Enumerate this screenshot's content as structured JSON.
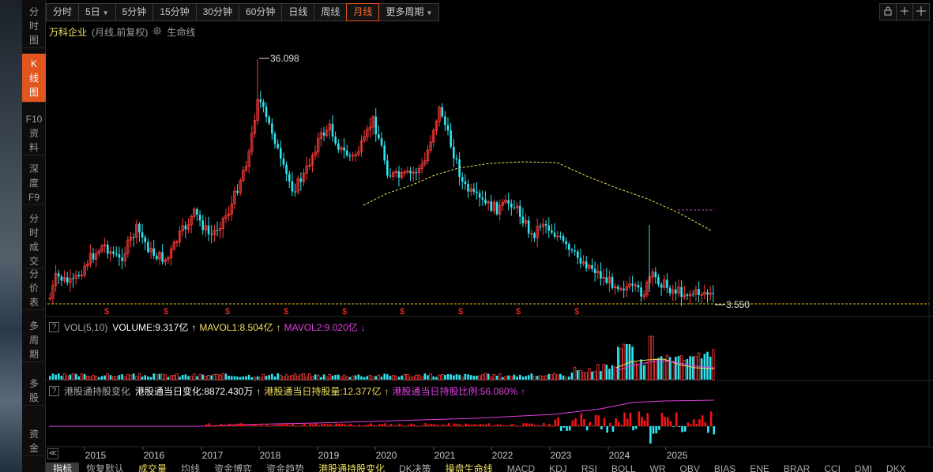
{
  "side_nav": [
    {
      "label": [
        "分",
        "时",
        "图"
      ],
      "active": false
    },
    {
      "label": [
        "K",
        "线",
        "图"
      ],
      "active": true
    },
    {
      "label": [
        "F10",
        "资",
        "料"
      ],
      "active": false
    },
    {
      "label": [
        "深",
        "度",
        "F9"
      ],
      "active": false
    },
    {
      "label": [
        "分",
        "时",
        "成",
        "交"
      ],
      "active": false
    },
    {
      "label": [
        "分",
        "价",
        "表"
      ],
      "active": false
    },
    {
      "label": [
        "多",
        "周",
        "期"
      ],
      "active": false
    },
    {
      "label": [
        "多",
        "股"
      ],
      "active": false
    },
    {
      "label": [
        "资",
        "金"
      ],
      "active": false
    }
  ],
  "toolbar": {
    "periods": [
      {
        "label": "分时",
        "active": false
      },
      {
        "label": "5日",
        "active": false,
        "caret": true
      },
      {
        "label": "5分钟",
        "active": false
      },
      {
        "label": "15分钟",
        "active": false
      },
      {
        "label": "30分钟",
        "active": false
      },
      {
        "label": "60分钟",
        "active": false
      },
      {
        "label": "日线",
        "active": false
      },
      {
        "label": "周线",
        "active": false
      },
      {
        "label": "月线",
        "active": true
      },
      {
        "label": "更多周期",
        "active": false,
        "caret": true
      }
    ],
    "right_tools": [
      "lock-icon",
      "plus-icon",
      "crosshair-icon"
    ]
  },
  "header": {
    "stock_name": "万科企业",
    "mode": "(月线,前复权)",
    "indicator": "生命线"
  },
  "price_chart": {
    "high_label": "36.098",
    "low_label": "3.550",
    "dividend_marker": "$"
  },
  "volume_legend": {
    "box": "?",
    "name": "VOL(5,10)",
    "volume": "VOLUME:9.317亿",
    "mavol1": "MAVOL1:8.504亿",
    "mavol2": "MAVOL2:9.020亿",
    "arrow_up": "↑",
    "arrow_down": "↓"
  },
  "hk_legend": {
    "box": "?",
    "name": "港股通持股变化",
    "daily_change": "港股通当日变化:8872.430万",
    "holding": "港股通当日持股量:12.377亿",
    "ratio": "港股通当日持股比例:56.080%",
    "arrow_up": "↑"
  },
  "x_axis": {
    "collapse": "≪",
    "years": [
      "2015",
      "2016",
      "2017",
      "2018",
      "2019",
      "2020",
      "2021",
      "2022",
      "2023",
      "2024",
      "2025"
    ]
  },
  "bottom_tabs": [
    {
      "label": "指标",
      "active": true
    },
    {
      "label": "恢复默认",
      "active": false
    },
    {
      "label": "成交量",
      "active": false,
      "yellow": true
    },
    {
      "label": "均线",
      "active": false
    },
    {
      "label": "资金博弈",
      "active": false
    },
    {
      "label": "资金趋势",
      "active": false
    },
    {
      "label": "港股通持股变化",
      "active": false,
      "yellow": true
    },
    {
      "label": "DK决策",
      "active": false
    },
    {
      "label": "操盘生命线",
      "active": false,
      "yellow": true
    },
    {
      "label": "MACD",
      "active": false
    },
    {
      "label": "KDJ",
      "active": false
    },
    {
      "label": "RSI",
      "active": false
    },
    {
      "label": "BOLL",
      "active": false
    },
    {
      "label": "WR",
      "active": false
    },
    {
      "label": "OBV",
      "active": false
    },
    {
      "label": "BIAS",
      "active": false
    },
    {
      "label": "ENE",
      "active": false
    },
    {
      "label": "BRAR",
      "active": false
    },
    {
      "label": "CCI",
      "active": false
    },
    {
      "label": "DMI",
      "active": false
    },
    {
      "label": "DKX",
      "active": false
    }
  ],
  "colors": {
    "up": "#ff3b3b",
    "down": "#2ee6f0",
    "mavol1": "#f0e060",
    "mavol2": "#e040e0",
    "lifeline": "#f0e060",
    "accent": "#e0561e"
  }
}
